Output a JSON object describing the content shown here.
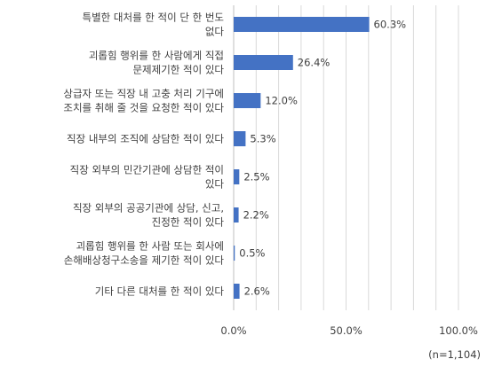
{
  "chart_data": {
    "type": "bar",
    "orientation": "horizontal",
    "categories": [
      [
        "특별한 대처를 한 적이 단 한 번도",
        "없다"
      ],
      [
        "괴롭힘 행위를 한 사람에게 직접",
        "문제제기한 적이 있다"
      ],
      [
        "상급자 또는 직장 내 고충 처리 기구에",
        "조치를 취해 줄 것을 요청한 적이 있다"
      ],
      [
        "직장 내부의 조직에 상담한 적이 있다"
      ],
      [
        "직장 외부의 민간기관에 상담한 적이",
        "있다"
      ],
      [
        "직장 외부의 공공기관에 상담, 신고,",
        "진정한 적이 있다"
      ],
      [
        "괴롭힘 행위를 한 사람 또는 회사에",
        "손해배상청구소송을 제기한 적이 있다"
      ],
      [
        "기타 다른 대처를 한 적이 있다"
      ]
    ],
    "values": [
      60.3,
      26.4,
      12.0,
      5.3,
      2.5,
      2.2,
      0.5,
      2.6
    ],
    "value_labels": [
      "60.3%",
      "26.4%",
      "12.0%",
      "5.3%",
      "2.5%",
      "2.2%",
      "0.5%",
      "2.6%"
    ],
    "xlim": [
      0,
      100
    ],
    "x_ticks": [
      0,
      50,
      100
    ],
    "x_tick_labels": [
      "0.0%",
      "50.0%",
      "100.0%"
    ],
    "grid": "vertical",
    "note": "(n=1,104)",
    "colors": {
      "bar": "#4472c4",
      "grid": "#d9d9d9",
      "axis": "#bfbfbf"
    }
  }
}
